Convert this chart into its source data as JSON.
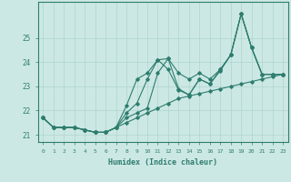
{
  "title": "",
  "xlabel": "Humidex (Indice chaleur)",
  "x": [
    0,
    1,
    2,
    3,
    4,
    5,
    6,
    7,
    8,
    9,
    10,
    11,
    12,
    13,
    14,
    15,
    16,
    17,
    18,
    19,
    20,
    21,
    22,
    23
  ],
  "line_upper": [
    21.7,
    21.3,
    21.3,
    21.3,
    21.2,
    21.1,
    21.1,
    21.3,
    22.2,
    23.3,
    23.55,
    24.1,
    24.15,
    23.55,
    23.3,
    23.55,
    23.3,
    23.7,
    24.3,
    26.0,
    24.6,
    23.5,
    23.5,
    23.5
  ],
  "line_mid_high": [
    21.7,
    21.3,
    21.3,
    21.3,
    21.2,
    21.1,
    21.1,
    21.3,
    21.9,
    22.3,
    23.3,
    24.1,
    23.7,
    22.85,
    22.65,
    23.3,
    23.1,
    23.7,
    24.3,
    26.0,
    24.6,
    23.5,
    23.5,
    23.5
  ],
  "line_mid_low": [
    21.7,
    21.3,
    21.3,
    21.3,
    21.2,
    21.1,
    21.1,
    21.3,
    21.7,
    21.9,
    22.1,
    23.55,
    24.15,
    22.9,
    22.65,
    23.3,
    23.1,
    23.65,
    24.3,
    26.0,
    24.6,
    23.5,
    23.5,
    23.5
  ],
  "line_lower": [
    21.7,
    21.3,
    21.3,
    21.3,
    21.2,
    21.1,
    21.1,
    21.3,
    21.5,
    21.7,
    21.9,
    22.1,
    22.3,
    22.5,
    22.6,
    22.7,
    22.8,
    22.9,
    23.0,
    23.1,
    23.2,
    23.3,
    23.4,
    23.5
  ],
  "line_color": "#2e7d6e",
  "bg_color": "#cce8e4",
  "grid_color": "#afd4cf",
  "axis_color": "#2e7d6e",
  "ylim": [
    20.7,
    26.5
  ],
  "yticks": [
    21,
    22,
    23,
    24,
    25
  ],
  "xlim": [
    -0.5,
    23.5
  ],
  "xticks": [
    0,
    1,
    2,
    3,
    4,
    5,
    6,
    7,
    8,
    9,
    10,
    11,
    12,
    13,
    14,
    15,
    16,
    17,
    18,
    19,
    20,
    21,
    22,
    23
  ]
}
